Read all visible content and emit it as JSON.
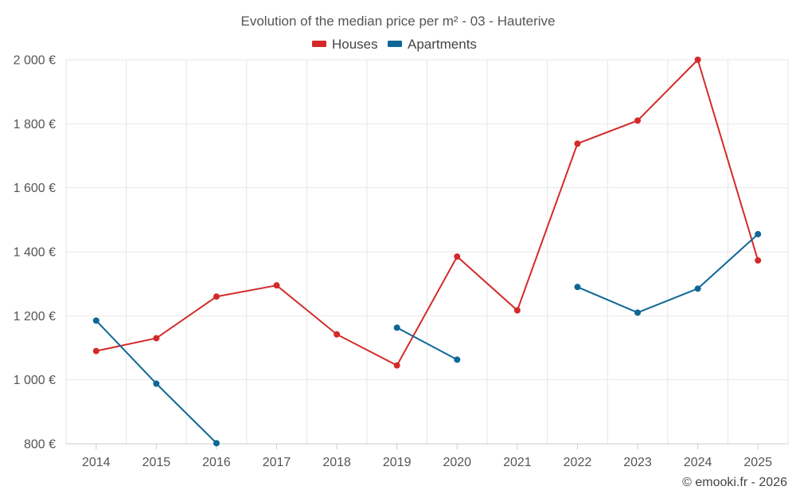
{
  "chart_data": {
    "type": "line",
    "title": "Evolution of the median price per m² - 03 - Hauterive",
    "categories": [
      "2014",
      "2015",
      "2016",
      "2017",
      "2018",
      "2019",
      "2020",
      "2021",
      "2022",
      "2023",
      "2024",
      "2025"
    ],
    "ylim": [
      800,
      2000
    ],
    "yticks": [
      800,
      1000,
      1200,
      1400,
      1600,
      1800,
      2000
    ],
    "ytick_labels": [
      "800 €",
      "1 000 €",
      "1 200 €",
      "1 400 €",
      "1 600 €",
      "1 800 €",
      "2 000 €"
    ],
    "grid": true,
    "legend_position": "top-center",
    "series": [
      {
        "name": "Houses",
        "color": "#d42a2a",
        "values": [
          1090,
          1130,
          1260,
          1295,
          1142,
          1045,
          1385,
          1217,
          1738,
          1810,
          2000,
          1373
        ]
      },
      {
        "name": "Apartments",
        "color": "#0e6796",
        "values": [
          1185,
          988,
          802,
          null,
          null,
          1163,
          1063,
          null,
          1290,
          1210,
          1285,
          1455
        ]
      }
    ]
  },
  "credit": "© emooki.fr - 2026"
}
